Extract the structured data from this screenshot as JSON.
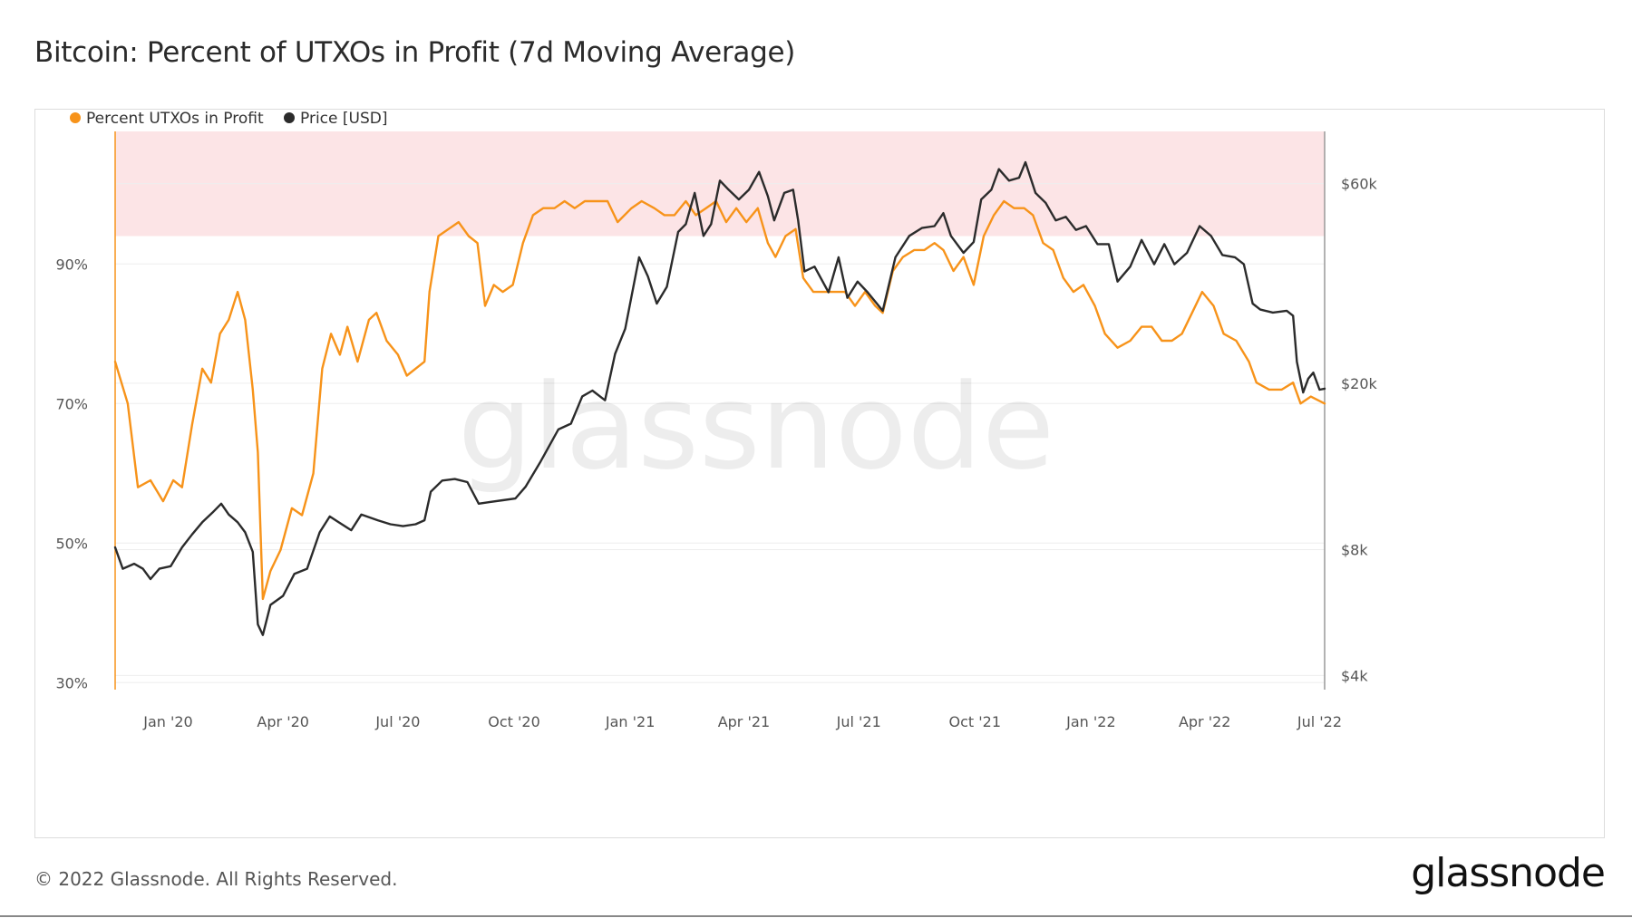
{
  "title": "Bitcoin: Percent of UTXOs in Profit (7d Moving Average)",
  "footer": "© 2022 Glassnode. All Rights Reserved.",
  "brand": "glassnode",
  "watermark": "glassnode",
  "colors": {
    "utxo": "#F7931A",
    "price": "#2B2B2B",
    "band": "#FCE4E6",
    "grid": "#EEEEEE",
    "axis": "#999999"
  },
  "chart_data": {
    "type": "line",
    "legend_placement": "top-left",
    "grid": true,
    "x_range": [
      "2019-11-20",
      "2022-07-05"
    ],
    "x_ticks": [
      "Jan '20",
      "Apr '20",
      "Jul '20",
      "Oct '20",
      "Jan '21",
      "Apr '21",
      "Jul '21",
      "Oct '21",
      "Jan '22",
      "Apr '22",
      "Jul '22"
    ],
    "x_tick_dates": [
      "2020-01-01",
      "2020-04-01",
      "2020-07-01",
      "2020-10-01",
      "2021-01-01",
      "2021-04-01",
      "2021-07-01",
      "2021-10-01",
      "2022-01-01",
      "2022-04-01",
      "2022-07-01"
    ],
    "y_left": {
      "ticks": [
        "30%",
        "50%",
        "70%",
        "90%"
      ],
      "tick_values": [
        30,
        50,
        70,
        90
      ],
      "range": [
        29,
        109
      ]
    },
    "y_right": {
      "scale": "log",
      "ticks": [
        "$4k",
        "$8k",
        "$20k",
        "$60k"
      ],
      "tick_values": [
        4000,
        8000,
        20000,
        60000
      ],
      "range": [
        3700,
        80000
      ]
    },
    "band": {
      "y_from": 94,
      "y_to": 109
    },
    "series": [
      {
        "name": "Percent UTXOs in Profit",
        "axis": "left",
        "points": [
          [
            "2019-11-20",
            76
          ],
          [
            "2019-11-30",
            70
          ],
          [
            "2019-12-08",
            58
          ],
          [
            "2019-12-18",
            59
          ],
          [
            "2019-12-28",
            56
          ],
          [
            "2020-01-05",
            59
          ],
          [
            "2020-01-12",
            58
          ],
          [
            "2020-01-20",
            67
          ],
          [
            "2020-01-28",
            75
          ],
          [
            "2020-02-04",
            73
          ],
          [
            "2020-02-11",
            80
          ],
          [
            "2020-02-18",
            82
          ],
          [
            "2020-02-25",
            86
          ],
          [
            "2020-03-02",
            82
          ],
          [
            "2020-03-08",
            72
          ],
          [
            "2020-03-12",
            63
          ],
          [
            "2020-03-16",
            42
          ],
          [
            "2020-03-22",
            46
          ],
          [
            "2020-03-30",
            49
          ],
          [
            "2020-04-08",
            55
          ],
          [
            "2020-04-16",
            54
          ],
          [
            "2020-04-25",
            60
          ],
          [
            "2020-05-02",
            75
          ],
          [
            "2020-05-09",
            80
          ],
          [
            "2020-05-16",
            77
          ],
          [
            "2020-05-22",
            81
          ],
          [
            "2020-05-30",
            76
          ],
          [
            "2020-06-08",
            82
          ],
          [
            "2020-06-14",
            83
          ],
          [
            "2020-06-22",
            79
          ],
          [
            "2020-07-01",
            77
          ],
          [
            "2020-07-08",
            74
          ],
          [
            "2020-07-15",
            75
          ],
          [
            "2020-07-22",
            76
          ],
          [
            "2020-07-26",
            86
          ],
          [
            "2020-08-02",
            94
          ],
          [
            "2020-08-10",
            95
          ],
          [
            "2020-08-18",
            96
          ],
          [
            "2020-08-26",
            94
          ],
          [
            "2020-09-02",
            93
          ],
          [
            "2020-09-08",
            84
          ],
          [
            "2020-09-15",
            87
          ],
          [
            "2020-09-22",
            86
          ],
          [
            "2020-09-30",
            87
          ],
          [
            "2020-10-08",
            93
          ],
          [
            "2020-10-16",
            97
          ],
          [
            "2020-10-24",
            98
          ],
          [
            "2020-11-02",
            98
          ],
          [
            "2020-11-10",
            99
          ],
          [
            "2020-11-18",
            98
          ],
          [
            "2020-11-26",
            99
          ],
          [
            "2020-12-05",
            99
          ],
          [
            "2020-12-14",
            99
          ],
          [
            "2020-12-22",
            96
          ],
          [
            "2021-01-02",
            98
          ],
          [
            "2021-01-10",
            99
          ],
          [
            "2021-01-20",
            98
          ],
          [
            "2021-01-28",
            97
          ],
          [
            "2021-02-05",
            97
          ],
          [
            "2021-02-14",
            99
          ],
          [
            "2021-02-22",
            97
          ],
          [
            "2021-03-02",
            98
          ],
          [
            "2021-03-10",
            99
          ],
          [
            "2021-03-18",
            96
          ],
          [
            "2021-03-26",
            98
          ],
          [
            "2021-04-03",
            96
          ],
          [
            "2021-04-12",
            98
          ],
          [
            "2021-04-20",
            93
          ],
          [
            "2021-04-26",
            91
          ],
          [
            "2021-05-04",
            94
          ],
          [
            "2021-05-12",
            95
          ],
          [
            "2021-05-18",
            88
          ],
          [
            "2021-05-26",
            86
          ],
          [
            "2021-06-04",
            86
          ],
          [
            "2021-06-12",
            86
          ],
          [
            "2021-06-20",
            86
          ],
          [
            "2021-06-28",
            84
          ],
          [
            "2021-07-06",
            86
          ],
          [
            "2021-07-14",
            84
          ],
          [
            "2021-07-20",
            83
          ],
          [
            "2021-07-28",
            89
          ],
          [
            "2021-08-05",
            91
          ],
          [
            "2021-08-14",
            92
          ],
          [
            "2021-08-22",
            92
          ],
          [
            "2021-08-30",
            93
          ],
          [
            "2021-09-06",
            92
          ],
          [
            "2021-09-14",
            89
          ],
          [
            "2021-09-22",
            91
          ],
          [
            "2021-09-30",
            87
          ],
          [
            "2021-10-08",
            94
          ],
          [
            "2021-10-16",
            97
          ],
          [
            "2021-10-24",
            99
          ],
          [
            "2021-11-01",
            98
          ],
          [
            "2021-11-09",
            98
          ],
          [
            "2021-11-16",
            97
          ],
          [
            "2021-11-24",
            93
          ],
          [
            "2021-12-02",
            92
          ],
          [
            "2021-12-10",
            88
          ],
          [
            "2021-12-18",
            86
          ],
          [
            "2021-12-26",
            87
          ],
          [
            "2022-01-04",
            84
          ],
          [
            "2022-01-12",
            80
          ],
          [
            "2022-01-22",
            78
          ],
          [
            "2022-02-01",
            79
          ],
          [
            "2022-02-10",
            81
          ],
          [
            "2022-02-18",
            81
          ],
          [
            "2022-02-26",
            79
          ],
          [
            "2022-03-06",
            79
          ],
          [
            "2022-03-14",
            80
          ],
          [
            "2022-03-22",
            83
          ],
          [
            "2022-03-30",
            86
          ],
          [
            "2022-04-08",
            84
          ],
          [
            "2022-04-16",
            80
          ],
          [
            "2022-04-26",
            79
          ],
          [
            "2022-05-06",
            76
          ],
          [
            "2022-05-12",
            73
          ],
          [
            "2022-05-22",
            72
          ],
          [
            "2022-06-01",
            72
          ],
          [
            "2022-06-10",
            73
          ],
          [
            "2022-06-16",
            70
          ],
          [
            "2022-06-24",
            71
          ],
          [
            "2022-07-05",
            70
          ]
        ]
      },
      {
        "name": "Price [USD]",
        "axis": "right",
        "points": [
          [
            "2019-11-20",
            8100
          ],
          [
            "2019-11-26",
            7200
          ],
          [
            "2019-12-05",
            7400
          ],
          [
            "2019-12-12",
            7200
          ],
          [
            "2019-12-18",
            6800
          ],
          [
            "2019-12-25",
            7200
          ],
          [
            "2020-01-03",
            7300
          ],
          [
            "2020-01-12",
            8100
          ],
          [
            "2020-01-20",
            8700
          ],
          [
            "2020-01-28",
            9300
          ],
          [
            "2020-02-05",
            9800
          ],
          [
            "2020-02-12",
            10300
          ],
          [
            "2020-02-18",
            9700
          ],
          [
            "2020-02-25",
            9300
          ],
          [
            "2020-03-02",
            8800
          ],
          [
            "2020-03-08",
            7900
          ],
          [
            "2020-03-12",
            5300
          ],
          [
            "2020-03-16",
            5000
          ],
          [
            "2020-03-22",
            5900
          ],
          [
            "2020-04-01",
            6200
          ],
          [
            "2020-04-10",
            7000
          ],
          [
            "2020-04-20",
            7200
          ],
          [
            "2020-04-30",
            8800
          ],
          [
            "2020-05-08",
            9600
          ],
          [
            "2020-05-15",
            9300
          ],
          [
            "2020-05-25",
            8900
          ],
          [
            "2020-06-02",
            9700
          ],
          [
            "2020-06-15",
            9400
          ],
          [
            "2020-06-25",
            9200
          ],
          [
            "2020-07-05",
            9100
          ],
          [
            "2020-07-15",
            9200
          ],
          [
            "2020-07-22",
            9400
          ],
          [
            "2020-07-27",
            11000
          ],
          [
            "2020-08-05",
            11700
          ],
          [
            "2020-08-15",
            11800
          ],
          [
            "2020-08-25",
            11600
          ],
          [
            "2020-09-03",
            10300
          ],
          [
            "2020-09-12",
            10400
          ],
          [
            "2020-09-22",
            10500
          ],
          [
            "2020-10-02",
            10600
          ],
          [
            "2020-10-10",
            11300
          ],
          [
            "2020-10-22",
            13000
          ],
          [
            "2020-11-05",
            15500
          ],
          [
            "2020-11-15",
            16000
          ],
          [
            "2020-11-24",
            18600
          ],
          [
            "2020-12-02",
            19200
          ],
          [
            "2020-12-12",
            18200
          ],
          [
            "2020-12-20",
            23500
          ],
          [
            "2020-12-28",
            27000
          ],
          [
            "2021-01-08",
            40000
          ],
          [
            "2021-01-15",
            36000
          ],
          [
            "2021-01-22",
            31000
          ],
          [
            "2021-01-30",
            34000
          ],
          [
            "2021-02-08",
            46000
          ],
          [
            "2021-02-14",
            48000
          ],
          [
            "2021-02-21",
            57000
          ],
          [
            "2021-02-28",
            45000
          ],
          [
            "2021-03-06",
            48000
          ],
          [
            "2021-03-13",
            61000
          ],
          [
            "2021-03-20",
            58000
          ],
          [
            "2021-03-28",
            55000
          ],
          [
            "2021-04-05",
            58000
          ],
          [
            "2021-04-13",
            64000
          ],
          [
            "2021-04-20",
            56000
          ],
          [
            "2021-04-25",
            49000
          ],
          [
            "2021-05-03",
            57000
          ],
          [
            "2021-05-10",
            58000
          ],
          [
            "2021-05-14",
            49000
          ],
          [
            "2021-05-19",
            37000
          ],
          [
            "2021-05-27",
            38000
          ],
          [
            "2021-06-07",
            33000
          ],
          [
            "2021-06-15",
            40000
          ],
          [
            "2021-06-22",
            32000
          ],
          [
            "2021-06-30",
            35000
          ],
          [
            "2021-07-08",
            33000
          ],
          [
            "2021-07-20",
            29800
          ],
          [
            "2021-07-30",
            40000
          ],
          [
            "2021-08-10",
            45000
          ],
          [
            "2021-08-20",
            47000
          ],
          [
            "2021-08-30",
            47500
          ],
          [
            "2021-09-06",
            51000
          ],
          [
            "2021-09-12",
            45000
          ],
          [
            "2021-09-22",
            41000
          ],
          [
            "2021-09-30",
            43500
          ],
          [
            "2021-10-06",
            55000
          ],
          [
            "2021-10-14",
            58000
          ],
          [
            "2021-10-20",
            65000
          ],
          [
            "2021-10-28",
            61000
          ],
          [
            "2021-11-05",
            62000
          ],
          [
            "2021-11-10",
            67500
          ],
          [
            "2021-11-18",
            57000
          ],
          [
            "2021-11-26",
            54000
          ],
          [
            "2021-12-04",
            49000
          ],
          [
            "2021-12-12",
            50000
          ],
          [
            "2021-12-20",
            46500
          ],
          [
            "2021-12-28",
            47500
          ],
          [
            "2022-01-06",
            43000
          ],
          [
            "2022-01-15",
            43000
          ],
          [
            "2022-01-22",
            35000
          ],
          [
            "2022-02-01",
            38000
          ],
          [
            "2022-02-10",
            44000
          ],
          [
            "2022-02-20",
            38500
          ],
          [
            "2022-02-28",
            43000
          ],
          [
            "2022-03-08",
            38500
          ],
          [
            "2022-03-18",
            41000
          ],
          [
            "2022-03-28",
            47500
          ],
          [
            "2022-04-06",
            45000
          ],
          [
            "2022-04-15",
            40500
          ],
          [
            "2022-04-25",
            40000
          ],
          [
            "2022-05-02",
            38500
          ],
          [
            "2022-05-09",
            31000
          ],
          [
            "2022-05-15",
            30000
          ],
          [
            "2022-05-25",
            29500
          ],
          [
            "2022-06-05",
            29800
          ],
          [
            "2022-06-10",
            29000
          ],
          [
            "2022-06-13",
            22500
          ],
          [
            "2022-06-18",
            19000
          ],
          [
            "2022-06-22",
            20500
          ],
          [
            "2022-06-26",
            21200
          ],
          [
            "2022-07-01",
            19300
          ],
          [
            "2022-07-05",
            19400
          ]
        ]
      }
    ]
  }
}
